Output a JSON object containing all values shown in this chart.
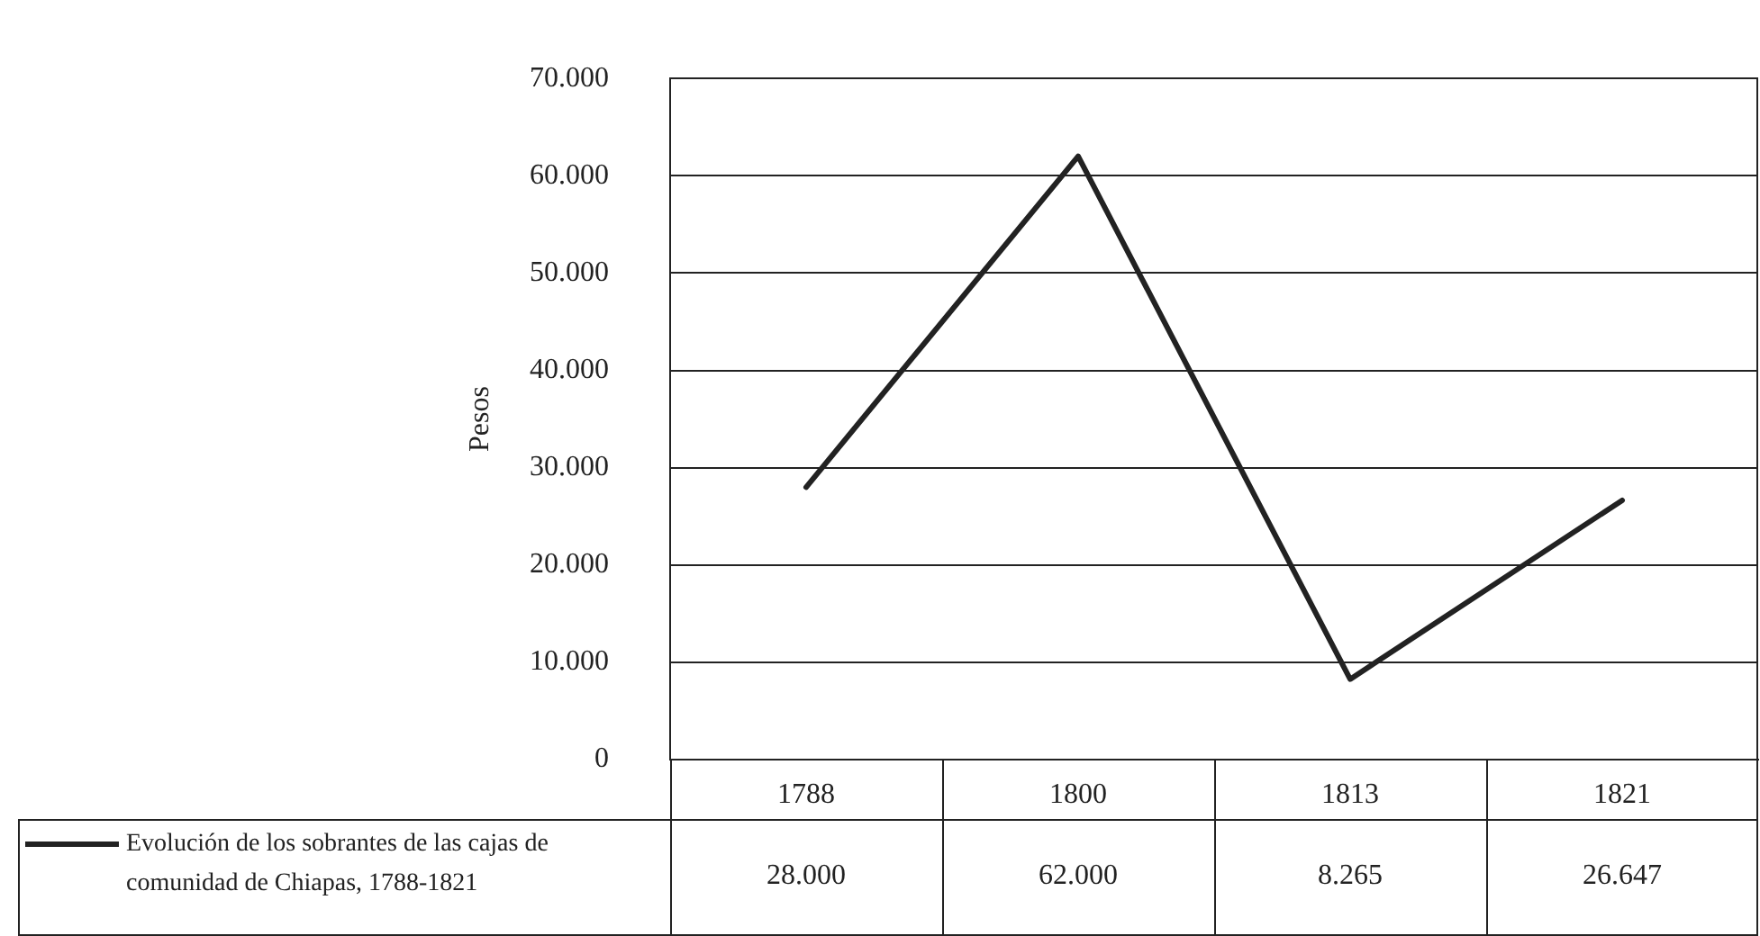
{
  "chart_data": {
    "type": "line",
    "ylabel": "Pesos",
    "categories": [
      "1788",
      "1800",
      "1813",
      "1821"
    ],
    "series": [
      {
        "name": "Evolución de los sobrantes de las cajas de comunidad de Chiapas, 1788-1821",
        "color": "#222222",
        "values": [
          28000,
          62000,
          8265,
          26647
        ],
        "value_labels": [
          "28.000",
          "62.000",
          "8.265",
          "26.647"
        ]
      }
    ],
    "ylim": [
      0,
      70000
    ],
    "yticks": [
      {
        "value": 0,
        "label": "0"
      },
      {
        "value": 10000,
        "label": "10.000"
      },
      {
        "value": 20000,
        "label": "20.000"
      },
      {
        "value": 30000,
        "label": "30.000"
      },
      {
        "value": 40000,
        "label": "40.000"
      },
      {
        "value": 50000,
        "label": "50.000"
      },
      {
        "value": 60000,
        "label": "60.000"
      },
      {
        "value": 70000,
        "label": "70.000"
      }
    ],
    "grid": "y",
    "legend": "bottom left",
    "marker": "none",
    "line_style": "solid"
  }
}
